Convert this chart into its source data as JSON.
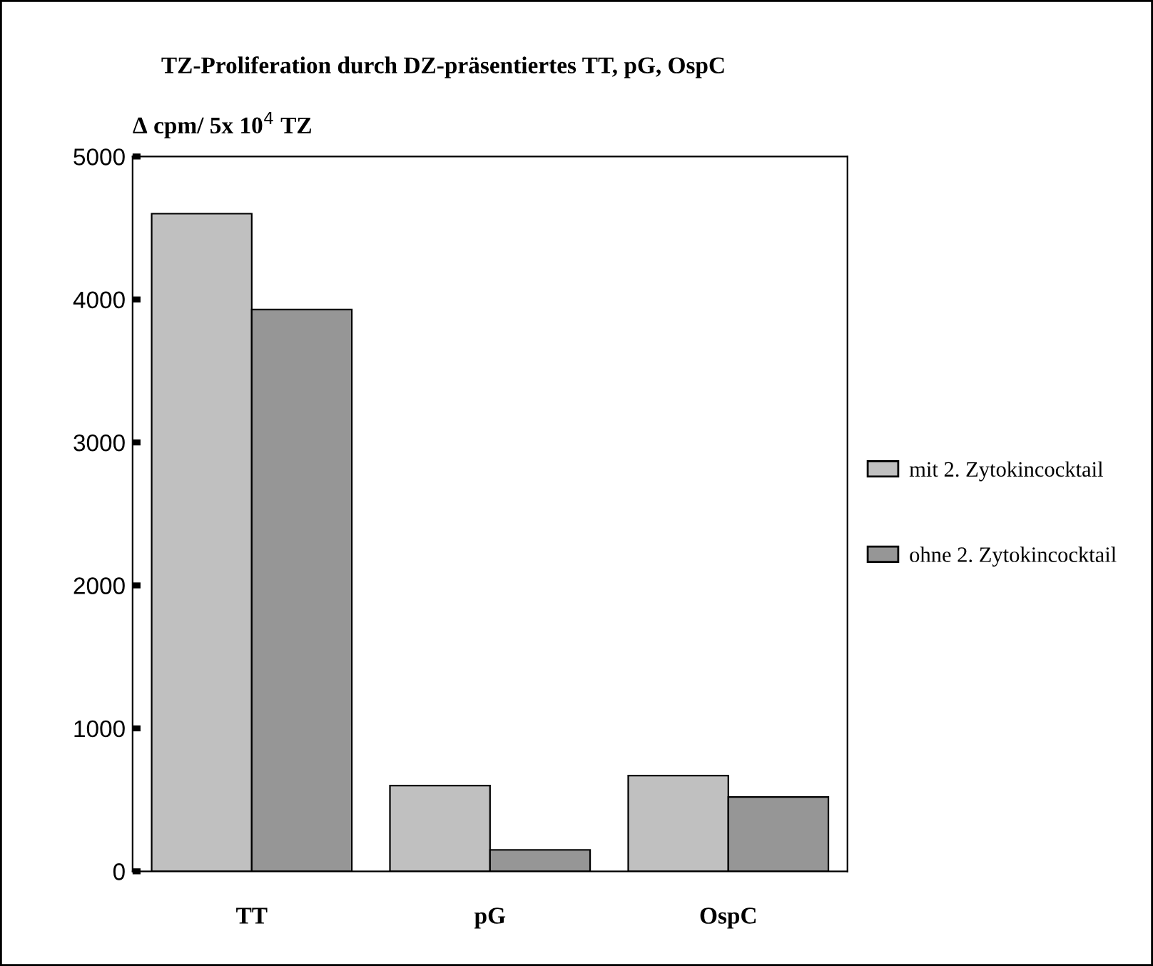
{
  "chart_data": {
    "type": "bar",
    "title": "TZ-Proliferation durch DZ-präsentiertes TT, pG, OspC",
    "ylabel": "Δ cpm/ 5x 10$^{4}$ TZ",
    "categories": [
      "TT",
      "pG",
      "OspC"
    ],
    "series": [
      {
        "name": "mit 2. Zytokincocktail",
        "color": "#c0c0c0",
        "values": [
          4600,
          600,
          670
        ]
      },
      {
        "name": "ohne 2. Zytokincocktail",
        "color": "#969696",
        "values": [
          3930,
          150,
          520
        ]
      }
    ],
    "ylim": [
      0,
      5000
    ],
    "yticks": [
      0,
      1000,
      2000,
      3000,
      4000,
      5000
    ],
    "grid": false,
    "legend": "right"
  }
}
